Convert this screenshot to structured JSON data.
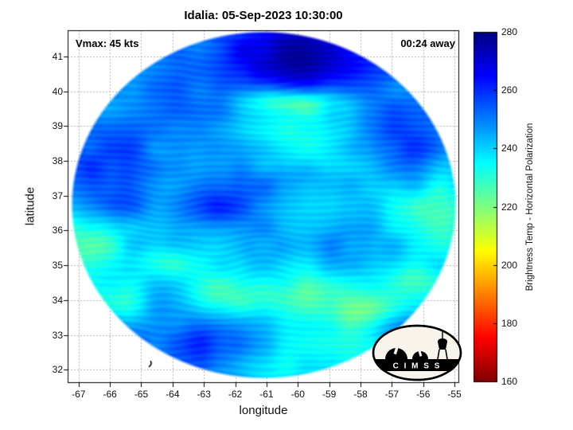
{
  "chart_data": {
    "type": "heatmap",
    "title": "Idalia: 05-Sep-2023 10:30:00",
    "xlabel": "longitude",
    "ylabel": "latitude",
    "xlim": [
      -67.35,
      -54.85
    ],
    "ylim": [
      31.62,
      41.75
    ],
    "xticks": [
      -67,
      -66,
      -65,
      -64,
      -63,
      -62,
      -61,
      -60,
      -59,
      -58,
      -57,
      -56,
      -55
    ],
    "yticks": [
      32,
      33,
      34,
      35,
      36,
      37,
      38,
      39,
      40,
      41
    ],
    "grid": true,
    "annotations": [
      {
        "text": "Vmax: 45 kts",
        "position": "top-left"
      },
      {
        "text": "00:24 away",
        "position": "top-right"
      }
    ],
    "colorbar": {
      "label": "Brightness Temp - Horizontal Polarization",
      "min": 160,
      "max": 280,
      "ticks": [
        160,
        180,
        200,
        220,
        240,
        260,
        280
      ],
      "colormap": "jet_reversed"
    },
    "swath": {
      "shape": "circular",
      "center": {
        "lon": -61.1,
        "lat": 36.75
      },
      "radius_deg": 6.2,
      "value_range_k": [
        208,
        280
      ],
      "description": "Microwave brightness temperature swath: mostly cyan 235-250 K; dark blue 260-280 K band across the top-center and diagonal filaments through mid-swath; scattered green-yellow 210-230 K patches at lower-left, south-center and right edge."
    },
    "logo_text": "C I M S S"
  }
}
